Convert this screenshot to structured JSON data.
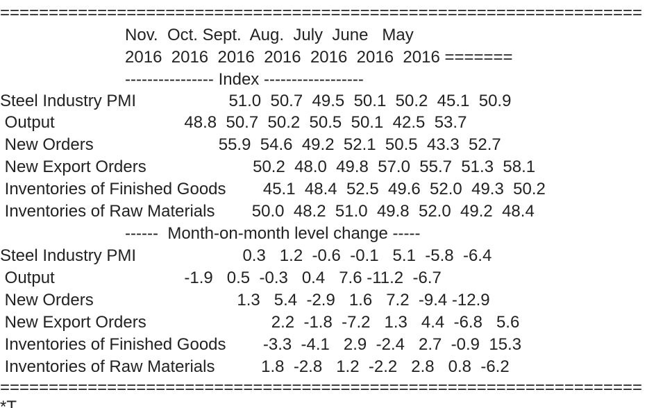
{
  "top_rule": "==================================================================",
  "header_line_1": "                           Nov.  Oct. Sept.  Aug.  July  June   May",
  "header_line_2": "                           2016  2016  2016  2016  2016  2016  2016 =======",
  "section_index_label": "                           ---------------- Index ------------------",
  "index_rows": [
    "Steel Industry PMI                    51.0  50.7  49.5  50.1  50.2  45.1  50.9",
    " Output                            48.8  50.7  50.2  50.5  50.1  42.5  53.7",
    " New Orders                           55.9  54.6  49.2  52.1  50.5  43.3  52.7",
    " New Export Orders                       50.2  48.0  49.8  57.0  55.7  51.3  58.1",
    " Inventories of Finished Goods        45.1  48.4  52.5  49.6  52.0  49.3  50.2",
    " Inventories of Raw Materials        50.0  48.2  51.0  49.8  52.0  49.2  48.4"
  ],
  "section_change_label": "                           ------  Month-on-month level change -----",
  "change_rows": [
    "Steel Industry PMI                       0.3   1.2  -0.6  -0.1   5.1  -5.8  -6.4",
    " Output                            -1.9   0.5  -0.3   0.4   7.6 -11.2  -6.7",
    " New Orders                               1.3   5.4  -2.9   1.6   7.2  -9.4 -12.9",
    " New Export Orders                           2.2  -1.8  -7.2   1.3   4.4  -6.8   5.6",
    " Inventories of Finished Goods        -3.3  -4.1   2.9  -2.4   2.7  -0.9  15.3",
    " Inventories of Raw Materials          1.8  -2.8   1.2  -2.2   2.8   0.8  -6.2"
  ],
  "bottom_rule": "==================================================================",
  "footnote": "*T"
}
